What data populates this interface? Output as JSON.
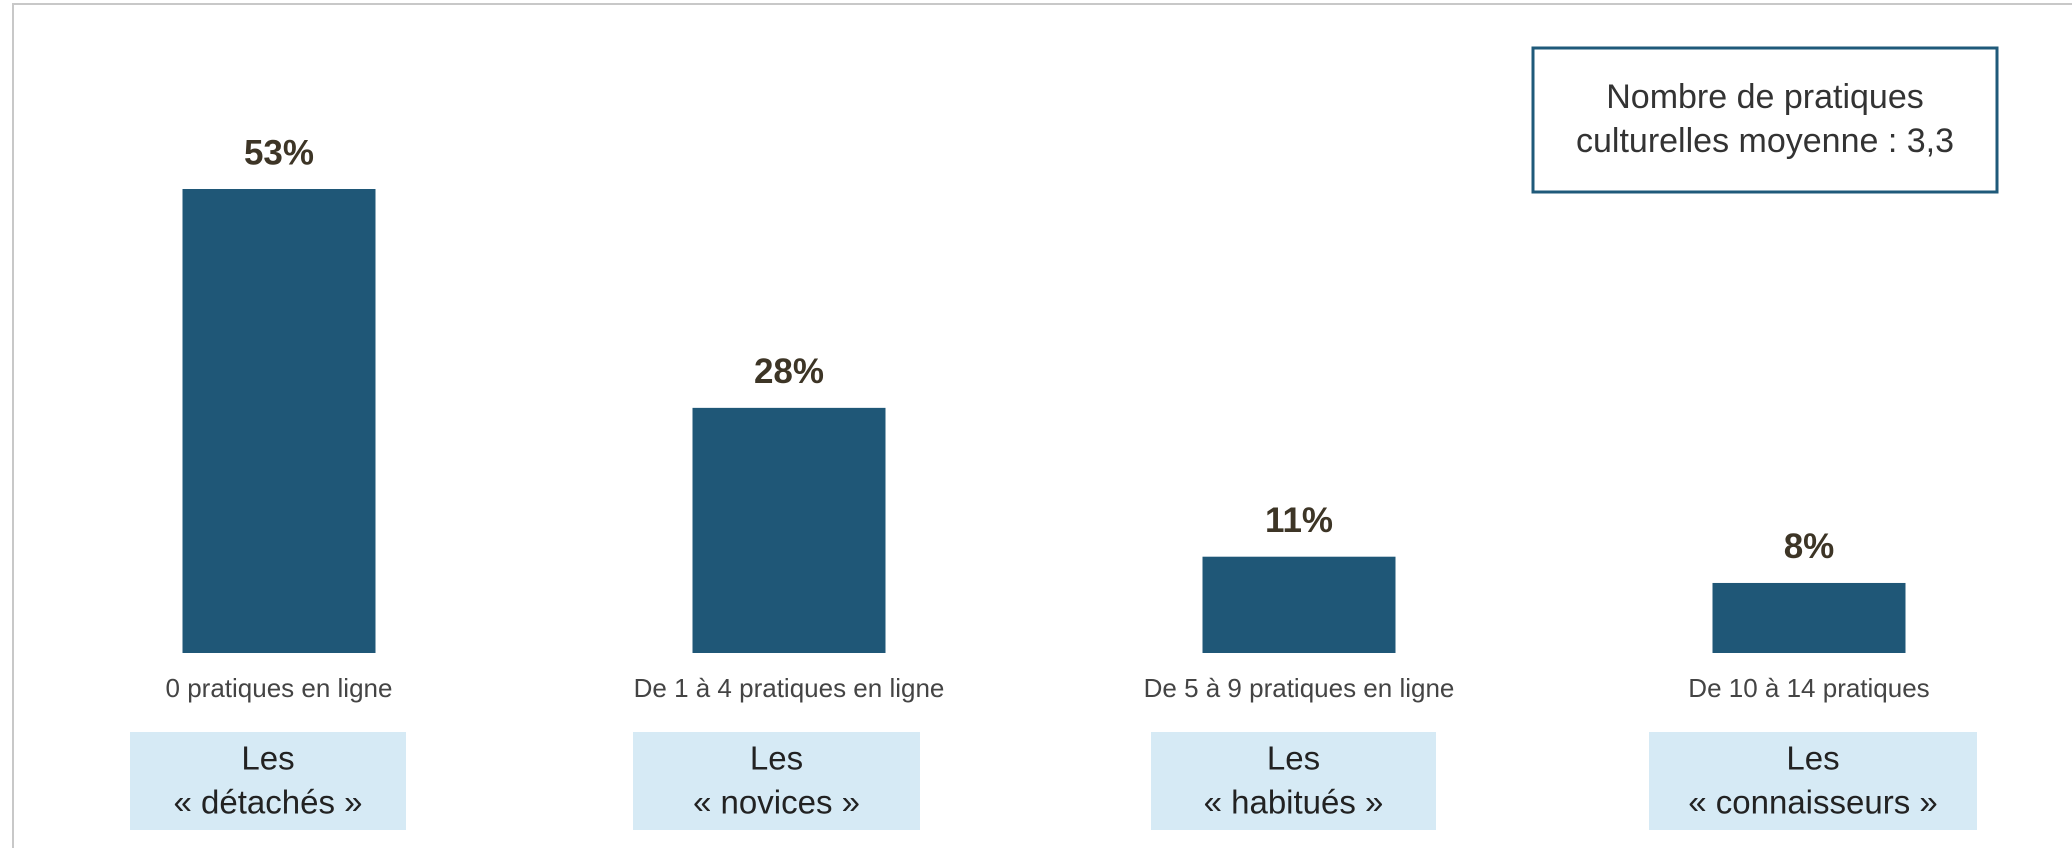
{
  "chart_data": {
    "type": "bar",
    "categories": [
      "0 pratiques en ligne",
      "De 1 à 4 pratiques en ligne",
      "De 5 à 9 pratiques en ligne",
      "De 10 à 14 pratiques"
    ],
    "values": [
      53,
      28,
      11,
      8
    ],
    "value_labels": [
      "53%",
      "28%",
      "11%",
      "8%"
    ],
    "color": "#1f5777",
    "groups": [
      [
        "Les",
        "« détachés »"
      ],
      [
        "Les",
        "« novices »"
      ],
      [
        "Les",
        "« habitués »"
      ],
      [
        "Les",
        "« connaisseurs »"
      ]
    ],
    "annotation": [
      "Nombre de pratiques",
      "culturelles moyenne : 3,3"
    ]
  }
}
